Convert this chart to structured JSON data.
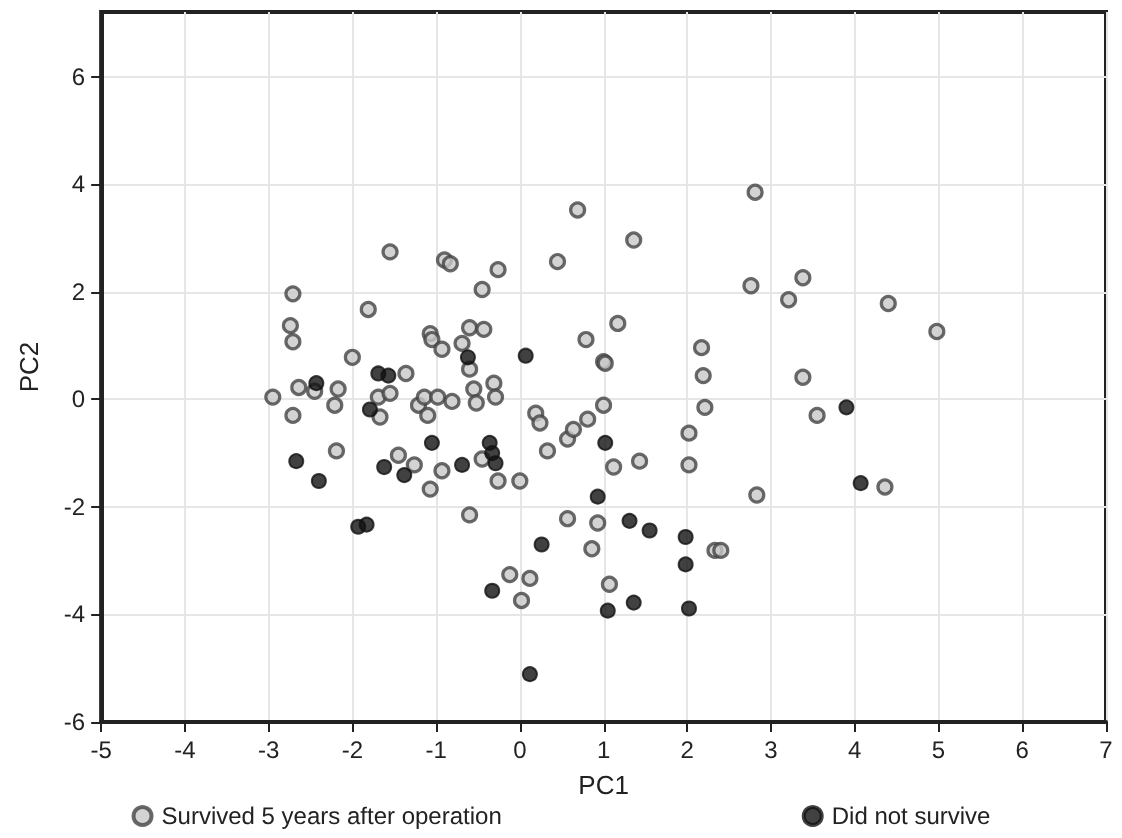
{
  "chart_data": {
    "type": "scatter",
    "xlabel": "PC1",
    "ylabel": "PC2",
    "xlim": [
      -5,
      7
    ],
    "ylim": [
      -6,
      7.2
    ],
    "xticks": [
      -5,
      -4,
      -3,
      -2,
      -1,
      0,
      1,
      2,
      3,
      4,
      5,
      6,
      7
    ],
    "yticks": [
      -6,
      -4,
      -2,
      0,
      2,
      4,
      6
    ],
    "grid": true,
    "legend": "bottom",
    "marker": "circle",
    "series": [
      {
        "name": "Survived 5 years after operation",
        "color": "#444444",
        "x": [
          0.69,
          -1.55,
          -0.9,
          -0.83,
          -0.26,
          0.45,
          -2.71,
          -1.81,
          -0.45,
          -2.74,
          -2.71,
          -1.07,
          -1.05,
          -0.93,
          -0.69,
          -0.6,
          -0.43,
          0.79,
          1.0,
          -2.0,
          -0.6,
          -1.36,
          -2.64,
          -2.45,
          -2.17,
          -2.21,
          -2.95,
          -1.69,
          -1.55,
          -1.67,
          -1.21,
          -1.14,
          -1.1,
          -0.98,
          -0.81,
          -0.55,
          -0.52,
          -0.31,
          -0.29,
          -2.71,
          0.19,
          0.24,
          1.0,
          0.57,
          0.64,
          0.81,
          0.33,
          -2.19,
          -1.45,
          -1.26,
          -0.93,
          -1.07,
          -0.45,
          -0.26,
          0.0,
          -0.6,
          0.57,
          0.93,
          0.86,
          1.36,
          2.81,
          2.76,
          3.38,
          3.21,
          4.4,
          4.98,
          1.17,
          1.02,
          2.17,
          2.19,
          3.38,
          2.21,
          3.55,
          2.02,
          1.12,
          1.43,
          2.02,
          2.83,
          4.36,
          2.33,
          2.4,
          -0.12,
          0.12,
          0.02,
          1.07
        ],
        "values": [
          3.52,
          2.74,
          2.59,
          2.52,
          2.41,
          2.56,
          1.96,
          1.67,
          2.04,
          1.37,
          1.07,
          1.22,
          1.11,
          0.93,
          1.04,
          1.33,
          1.3,
          1.11,
          0.7,
          0.78,
          0.56,
          0.48,
          0.22,
          0.15,
          0.19,
          -0.11,
          0.04,
          0.04,
          0.11,
          -0.33,
          -0.11,
          0.04,
          -0.3,
          0.04,
          -0.04,
          0.19,
          -0.07,
          0.3,
          0.04,
          -0.3,
          -0.26,
          -0.44,
          -0.11,
          -0.74,
          -0.56,
          -0.37,
          -0.96,
          -0.96,
          -1.04,
          -1.22,
          -1.33,
          -1.67,
          -1.11,
          -1.52,
          -1.52,
          -2.15,
          -2.22,
          -2.3,
          -2.78,
          2.96,
          3.85,
          2.11,
          2.26,
          1.85,
          1.78,
          1.26,
          1.41,
          0.67,
          0.96,
          0.44,
          0.41,
          -0.15,
          -0.3,
          -0.63,
          -1.26,
          -1.15,
          -1.22,
          -1.78,
          -1.63,
          -2.81,
          -2.81,
          -3.26,
          -3.33,
          -3.74,
          -3.44
        ]
      },
      {
        "name": "Did not survive",
        "color": "#111111",
        "x": [
          -2.67,
          -2.4,
          -2.43,
          -1.69,
          -1.57,
          -1.79,
          -1.62,
          -1.38,
          -1.05,
          -0.69,
          -0.62,
          -0.36,
          -0.33,
          -0.29,
          0.07,
          -1.93,
          -1.83,
          0.26,
          0.93,
          1.02,
          3.9,
          4.07,
          1.31,
          1.55,
          1.98,
          1.98,
          -0.33,
          1.05,
          1.36,
          2.02,
          0.12
        ],
        "values": [
          -1.15,
          -1.52,
          0.3,
          0.48,
          0.44,
          -0.19,
          -1.26,
          -1.41,
          -0.81,
          -1.22,
          0.78,
          -0.81,
          -1.0,
          -1.19,
          0.81,
          -2.37,
          -2.33,
          -2.7,
          -1.81,
          -0.81,
          -0.15,
          -1.56,
          -2.26,
          -2.44,
          -2.56,
          -3.07,
          -3.56,
          -3.93,
          -3.78,
          -3.89,
          -5.11
        ]
      }
    ]
  }
}
